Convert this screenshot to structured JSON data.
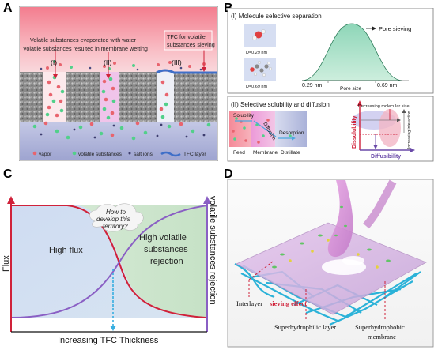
{
  "panels": {
    "a": "A",
    "b": "B",
    "c": "C",
    "d": "D"
  },
  "panel_a": {
    "line1": "Volatile substances evaporated with water",
    "line2": "Volatile substances resulted in membrane wetting",
    "tfc_box_line1": "TFC for volatile",
    "tfc_box_line2": "substances sieving",
    "pore_labels": [
      "(I)",
      "(II)",
      "(III)"
    ],
    "legend": [
      "vapor",
      "volatile substances",
      "salt ions",
      "TFC layer"
    ],
    "colors": {
      "vapor": "#e8646e",
      "volatile": "#52d08a",
      "salt": "#3d3d6e",
      "tfc": "#3f6fc8"
    }
  },
  "panel_b": {
    "sec1_title": "(I)   Molecule selective separation",
    "mol1_label": "D=0.29 nm",
    "mol2_label": "D=0.69 nm",
    "pore_sieving": "Pore sieving",
    "tick1": "0.29 nm",
    "tick2": "0.69 nm",
    "xlabel": "Pore size",
    "sec2_title": "(II)  Selective solubility and diffusion",
    "solubility": "Solubility",
    "diffusion": "Diffusion",
    "desorption": "Desorption",
    "feed": "Feed",
    "membrane": "Membrane",
    "distillate": "Distillate",
    "decreasing_size": "Decreasing molecular size",
    "increasing_interaction": "Increasing interaction",
    "dissolubility": "Dissolubility",
    "diffusibility": "Diffusibility"
  },
  "panel_c": {
    "question_line1": "How to",
    "question_line2": "develop this",
    "question_line3": "territory?",
    "high_flux": "High flux",
    "rejection_line1": "High volatile",
    "rejection_line2": "substances",
    "rejection_line3": "rejection",
    "y_left": "Flux",
    "y_right": "volatile substances rejection",
    "x_label": "Increasing TFC Thickness"
  },
  "panel_d": {
    "interlayer": "Interlayer",
    "sieving": "sieving effect",
    "superhydrophilic": "Superhydrophilic layer",
    "superhydrophobic_line1": "Superhydrophobic",
    "superhydrophobic_line2": "membrane"
  }
}
